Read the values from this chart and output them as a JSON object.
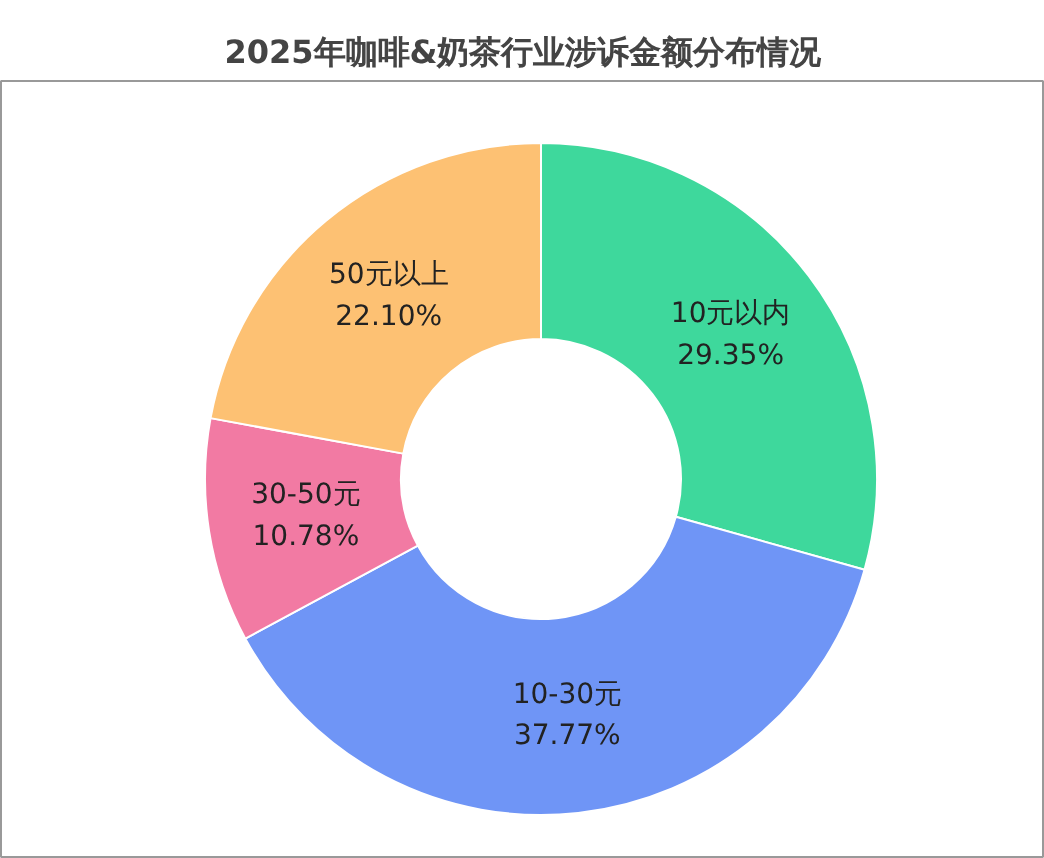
{
  "chart_data": {
    "type": "donut",
    "title": "2025年咖啡&奶茶行业涉诉金额分布情况",
    "categories": [
      "10元以内",
      "10-30元",
      "30-50元",
      "50元以上"
    ],
    "values": [
      29.35,
      37.77,
      10.78,
      22.1
    ],
    "value_labels": [
      "29.35%",
      "37.77%",
      "10.78%",
      "22.10%"
    ],
    "colors": [
      "#3ed89c",
      "#6f95f6",
      "#f27aa3",
      "#fdc173"
    ],
    "legend": false
  }
}
